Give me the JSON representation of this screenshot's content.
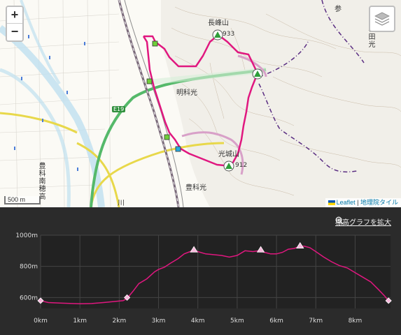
{
  "map": {
    "zoom_in": "+",
    "zoom_out": "−",
    "layers_icon": "layers-icon",
    "scale_label": "500 m",
    "attribution": {
      "leaflet": "Leaflet",
      "separator": " | ",
      "tiles": "地理院タイル"
    },
    "labels": {
      "nagamine": "長峰山",
      "peak1": "933",
      "meikako": "明科光",
      "koushinzan": "光城山",
      "peak2": "912",
      "toyoshinakou": "豊科光",
      "toyoshina_minami": "豊科南穂高",
      "e19": "E19",
      "akina_hikari": "敦田光",
      "ku": "川",
      "sanchi": "参"
    },
    "colors": {
      "route": "#e0177f",
      "road_green": "#55b96a",
      "road_yellow": "#e8d84a",
      "river": "#bfe0f0",
      "rail": "#7a6a7a"
    }
  },
  "profile": {
    "expand_label": "標高グラフを拡大",
    "expand_icon": "zoom-in-icon",
    "line_color": "#e0177f"
  },
  "chart_data": {
    "type": "area",
    "title": "",
    "xlabel": "",
    "ylabel": "",
    "x_unit": "km",
    "y_unit": "m",
    "xlim": [
      0,
      8.9
    ],
    "ylim": [
      530,
      1000
    ],
    "y_ticks": [
      "600m",
      "800m",
      "1000m"
    ],
    "x_ticks": [
      "0km",
      "1km",
      "2km",
      "3km",
      "4km",
      "5km",
      "6km",
      "7km",
      "8km"
    ],
    "series": [
      {
        "x": [
          0,
          0.2,
          0.5,
          0.8,
          1.0,
          1.3,
          1.6,
          1.9,
          2.1,
          2.2,
          2.35,
          2.5,
          2.7,
          2.9,
          3.0,
          3.15,
          3.3,
          3.5,
          3.65,
          3.8,
          3.9,
          4.0,
          4.2,
          4.4,
          4.6,
          4.8,
          5.0,
          5.2,
          5.4,
          5.55,
          5.7,
          5.85,
          6.0,
          6.15,
          6.3,
          6.45,
          6.55,
          6.7,
          6.85,
          7.0,
          7.2,
          7.4,
          7.6,
          7.8,
          8.0,
          8.2,
          8.4,
          8.6,
          8.75,
          8.85
        ],
        "y": [
          580,
          568,
          565,
          562,
          560,
          562,
          568,
          575,
          580,
          595,
          640,
          690,
          720,
          765,
          780,
          795,
          820,
          850,
          880,
          895,
          900,
          895,
          880,
          875,
          870,
          860,
          870,
          900,
          895,
          900,
          890,
          880,
          880,
          890,
          910,
          915,
          925,
          930,
          920,
          895,
          860,
          830,
          805,
          790,
          760,
          730,
          700,
          650,
          610,
          580
        ]
      }
    ],
    "markers": [
      {
        "x": 0.0,
        "y": 580,
        "shape": "diamond"
      },
      {
        "x": 2.2,
        "y": 600,
        "shape": "diamond"
      },
      {
        "x": 3.9,
        "y": 905,
        "shape": "triangle"
      },
      {
        "x": 5.6,
        "y": 905,
        "shape": "triangle"
      },
      {
        "x": 6.6,
        "y": 930,
        "shape": "triangle"
      },
      {
        "x": 8.85,
        "y": 580,
        "shape": "diamond"
      }
    ]
  }
}
